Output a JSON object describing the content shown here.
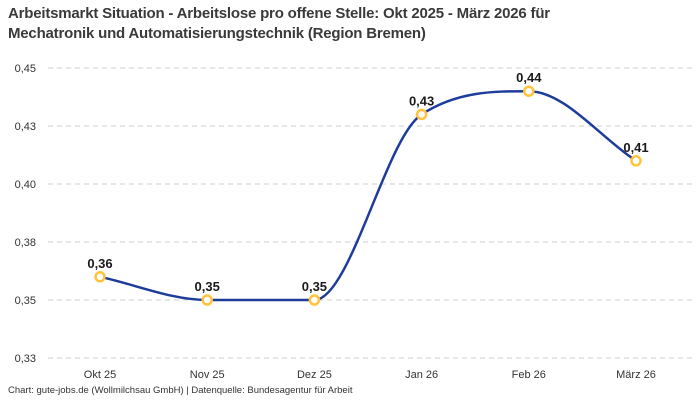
{
  "title": {
    "full": "Arbeitsmarkt Situation - Arbeitslose pro offene Stelle: Okt 2025 - März 2026 für Mechatronik und Automatisierungstechnik (Region Bremen)",
    "lines": [
      "Arbeitsmarkt Situation - Arbeitslose pro offene Stelle: Okt 2025 - März 2026 für",
      "Mechatronik und Automatisierungstechnik (Region Bremen)"
    ]
  },
  "footer": {
    "text": "Chart: gute-jobs.de (Wollmilchsau GmbH) | Datenquelle: Bundesagentur für Arbeit"
  },
  "chart_data": {
    "type": "line",
    "title": "Arbeitsmarkt Situation - Arbeitslose pro offene Stelle: Okt 2025 - März 2026 für Mechatronik und Automatisierungstechnik (Region Bremen)",
    "categories": [
      "Okt 25",
      "Nov 25",
      "Dez 25",
      "Jan 26",
      "Feb 26",
      "März 26"
    ],
    "values": [
      0.36,
      0.35,
      0.35,
      0.43,
      0.44,
      0.41
    ],
    "point_labels": [
      "0,36",
      "0,35",
      "0,35",
      "0,43",
      "0,44",
      "0,41"
    ],
    "y_ticks": [
      {
        "value": 0.45,
        "label": "0,45"
      },
      {
        "value": 0.425,
        "label": "0,43"
      },
      {
        "value": 0.4,
        "label": "0,40"
      },
      {
        "value": 0.375,
        "label": "0,38"
      },
      {
        "value": 0.35,
        "label": "0,35"
      },
      {
        "value": 0.325,
        "label": "0,33"
      }
    ],
    "ylim": [
      0.325,
      0.45
    ],
    "xlabel": "",
    "ylabel": "",
    "grid": "horizontal-dashed",
    "legend": "none",
    "curve": "monotone",
    "colors": {
      "line": "#1e3c9b",
      "marker_stroke": "#ffc33c",
      "marker_fill": "#ffffff",
      "grid": "#cccccc",
      "axis_text": "#333333",
      "point_label_text": "#1a1a1a",
      "title_text": "#3a3a3a",
      "background": "#ffffff"
    }
  }
}
